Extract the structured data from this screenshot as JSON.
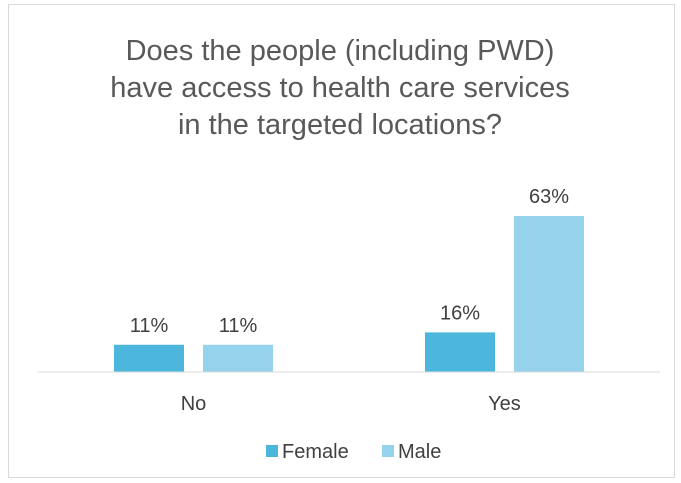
{
  "chart_data": {
    "type": "bar",
    "title_lines": [
      "Does the people (including PWD)",
      "have access to health care services",
      "in the targeted locations?"
    ],
    "categories": [
      "No",
      "Yes"
    ],
    "series": [
      {
        "name": "Female",
        "values": [
          11,
          16
        ],
        "labels": [
          "11%",
          "16%"
        ],
        "color": "#4cb6dc"
      },
      {
        "name": "Male",
        "values": [
          11,
          63
        ],
        "labels": [
          "11%",
          "63%"
        ],
        "color": "#95d3ec"
      }
    ],
    "ylim": [
      0,
      70
    ],
    "grid": false,
    "legend_position": "bottom"
  }
}
